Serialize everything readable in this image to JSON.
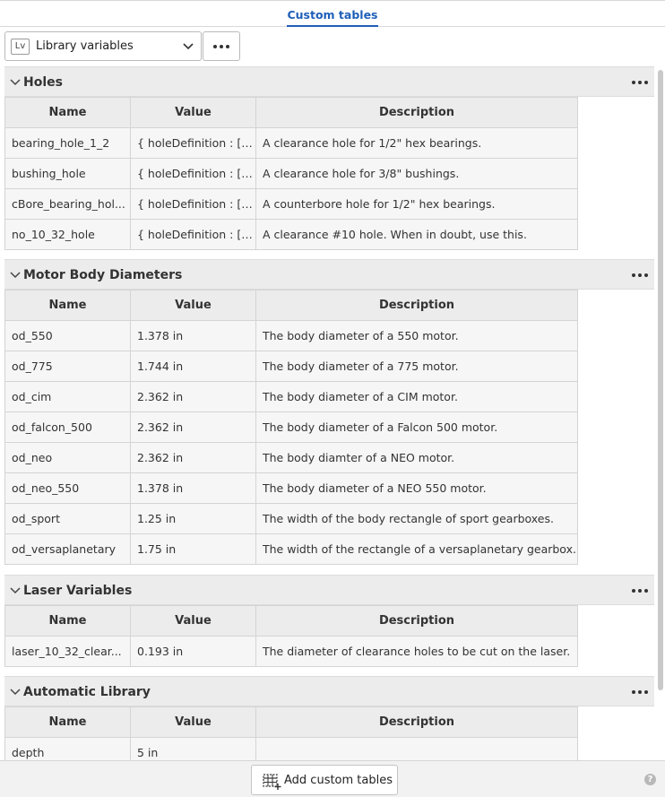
{
  "header": {
    "title": "Custom tables"
  },
  "toolbar": {
    "library_badge": "Lv",
    "library_select": "Library variables",
    "more_icon": "more-horizontal-icon"
  },
  "columns": {
    "name": "Name",
    "value": "Value",
    "description": "Description"
  },
  "sections": [
    {
      "title": "Holes",
      "rows": [
        {
          "name": "bearing_hole_1_2",
          "value": "{ holeDefinition : [ c...",
          "description": "A clearance hole for 1/2\" hex bearings."
        },
        {
          "name": "bushing_hole",
          "value": "{ holeDefinition : [ c...",
          "description": "A clearance hole for 3/8\" bushings."
        },
        {
          "name": "cBore_bearing_hol...",
          "value": "{ holeDefinition : [ c...",
          "description": "A counterbore hole for 1/2\" hex bearings."
        },
        {
          "name": "no_10_32_hole",
          "value": "{ holeDefinition : [ c...",
          "description": "A clearance #10 hole. When in doubt, use this."
        }
      ]
    },
    {
      "title": "Motor Body Diameters",
      "rows": [
        {
          "name": "od_550",
          "value": "1.378 in",
          "description": "The body diameter of a 550 motor."
        },
        {
          "name": "od_775",
          "value": "1.744 in",
          "description": "The body diameter of a 775 motor."
        },
        {
          "name": "od_cim",
          "value": "2.362 in",
          "description": "The body diameter of a CIM motor."
        },
        {
          "name": "od_falcon_500",
          "value": "2.362 in",
          "description": "The body diameter of a Falcon 500 motor."
        },
        {
          "name": "od_neo",
          "value": "2.362 in",
          "description": "The body diamter of a NEO motor."
        },
        {
          "name": "od_neo_550",
          "value": "1.378 in",
          "description": "The body diameter of a NEO 550 motor."
        },
        {
          "name": "od_sport",
          "value": "1.25 in",
          "description": "The width of the body rectangle of sport gearboxes."
        },
        {
          "name": "od_versaplanetary",
          "value": "1.75 in",
          "description": "The width of the rectangle of a versaplanetary gearbox."
        }
      ]
    },
    {
      "title": "Laser Variables",
      "rows": [
        {
          "name": "laser_10_32_clear...",
          "value": "0.193 in",
          "description": "The diameter of clearance holes to be cut on the laser."
        }
      ]
    },
    {
      "title": "Automatic Library",
      "rows": [
        {
          "name": "depth",
          "value": "5 in",
          "description": ""
        }
      ]
    }
  ],
  "footer": {
    "add_button": "Add custom tables",
    "add_icon": "add-table-icon",
    "help_icon": "?"
  }
}
